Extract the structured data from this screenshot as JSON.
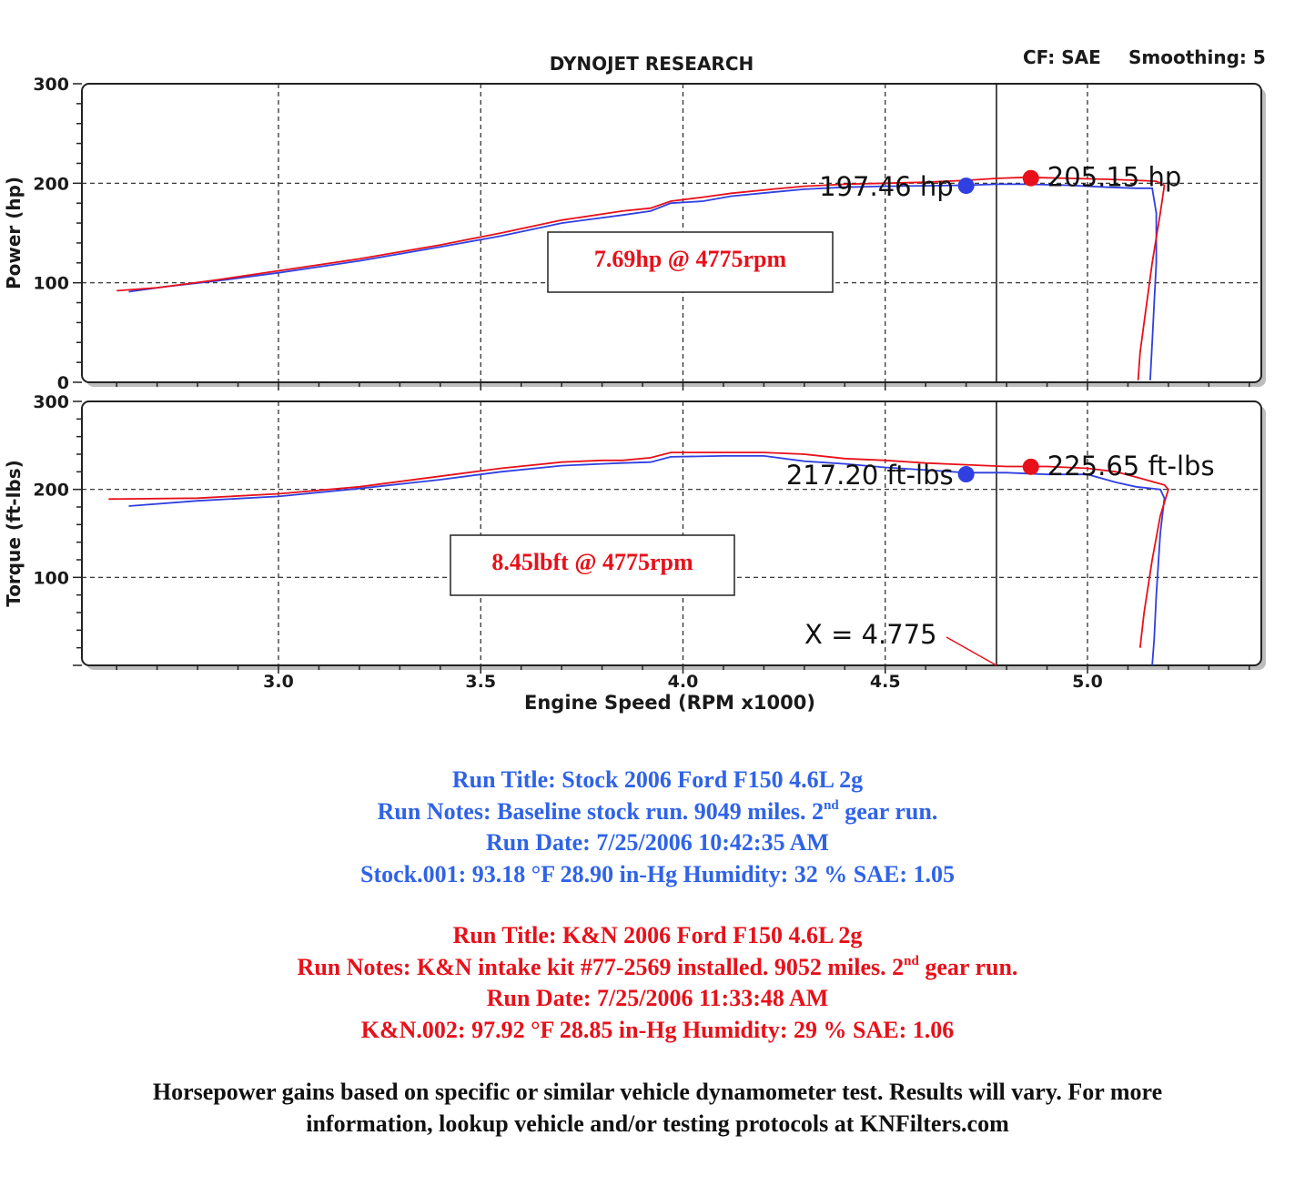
{
  "header": {
    "title": "DYNOJET RESEARCH",
    "cf_label": "CF: SAE",
    "smoothing_label": "Smoothing: 5"
  },
  "chart_data": [
    {
      "type": "line",
      "title": "DYNOJET RESEARCH",
      "ylabel": "Power (hp)",
      "xlabel": "",
      "ylim": [
        0,
        300
      ],
      "xlim": [
        2.55,
        5.45
      ],
      "y_ticks": [
        "0",
        "100",
        "200",
        "300"
      ],
      "grid": true,
      "series": [
        {
          "color": "#2f3fe0",
          "x": [
            2.63,
            2.72,
            2.85,
            3.0,
            3.2,
            3.4,
            3.55,
            3.7,
            3.85,
            3.92,
            3.97,
            4.05,
            4.12,
            4.22,
            4.3,
            4.4,
            4.5,
            4.6,
            4.7,
            4.78,
            4.85,
            4.95,
            5.05,
            5.12,
            5.16,
            5.17,
            5.17,
            5.165,
            5.16,
            5.155
          ],
          "y": [
            91,
            96,
            102,
            110,
            122,
            136,
            147,
            160,
            168,
            172,
            180,
            182,
            187,
            191,
            194,
            196,
            197,
            197.5,
            198,
            199,
            199,
            198,
            196,
            195,
            195,
            170,
            120,
            80,
            40,
            2
          ]
        },
        {
          "color": "#e8101a",
          "x": [
            2.6,
            2.7,
            2.85,
            3.0,
            3.2,
            3.4,
            3.55,
            3.7,
            3.85,
            3.92,
            3.97,
            4.05,
            4.12,
            4.22,
            4.3,
            4.4,
            4.5,
            4.6,
            4.7,
            4.78,
            4.85,
            4.95,
            5.05,
            5.12,
            5.17,
            5.19,
            5.18,
            5.16,
            5.14,
            5.13,
            5.125
          ],
          "y": [
            92,
            95,
            103,
            112,
            124,
            138,
            150,
            163,
            172,
            175,
            182,
            186,
            190,
            194,
            197,
            199,
            200,
            201,
            203,
            205,
            206,
            205,
            204,
            203,
            202,
            198,
            170,
            120,
            60,
            30,
            2
          ]
        }
      ],
      "points": [
        {
          "x": 4.7,
          "y": 197.46,
          "color": "#2f3fe0",
          "label": "197.46 hp"
        },
        {
          "x": 4.86,
          "y": 205.15,
          "color": "#e8101a",
          "label": "205.15 hp"
        }
      ],
      "annotation_box": "7.69hp @ 4775rpm",
      "cursor_x": 4.775
    },
    {
      "type": "line",
      "xlabel": "Engine Speed (RPM x1000)",
      "ylabel": "Torque (ft-lbs)",
      "ylim": [
        0,
        300
      ],
      "xlim": [
        2.55,
        5.45
      ],
      "x_ticks": [
        "3.0",
        "3.5",
        "4.0",
        "4.5",
        "5.0"
      ],
      "y_ticks": [
        "100",
        "200",
        "300"
      ],
      "grid": true,
      "series": [
        {
          "color": "#2f3fe0",
          "x": [
            2.63,
            2.8,
            3.0,
            3.2,
            3.4,
            3.55,
            3.7,
            3.8,
            3.85,
            3.92,
            3.97,
            4.1,
            4.2,
            4.3,
            4.4,
            4.5,
            4.6,
            4.7,
            4.8,
            4.9,
            5.0,
            5.07,
            5.12,
            5.18,
            5.19,
            5.18,
            5.17,
            5.165,
            5.16
          ],
          "y": [
            181,
            187,
            192,
            201,
            211,
            220,
            227,
            229,
            230,
            231,
            237,
            238,
            238,
            232,
            229,
            225,
            222,
            219,
            219,
            217,
            217,
            208,
            203,
            200,
            190,
            150,
            80,
            30,
            0
          ]
        },
        {
          "color": "#e8101a",
          "x": [
            2.58,
            2.8,
            3.0,
            3.2,
            3.4,
            3.55,
            3.7,
            3.8,
            3.85,
            3.92,
            3.97,
            4.1,
            4.2,
            4.3,
            4.4,
            4.5,
            4.6,
            4.7,
            4.8,
            4.9,
            5.0,
            5.07,
            5.12,
            5.19,
            5.2,
            5.18,
            5.16,
            5.14,
            5.13
          ],
          "y": [
            189,
            190,
            195,
            203,
            215,
            224,
            231,
            233,
            233,
            236,
            242,
            242,
            242,
            240,
            235,
            233,
            230,
            228,
            226,
            226,
            224,
            220,
            214,
            205,
            200,
            170,
            120,
            60,
            20
          ]
        }
      ],
      "points": [
        {
          "x": 4.7,
          "y": 217.2,
          "color": "#2f3fe0",
          "label": "217.20 ft-lbs"
        },
        {
          "x": 4.86,
          "y": 225.65,
          "color": "#e8101a",
          "label": "225.65 ft-lbs"
        }
      ],
      "annotation_box": "8.45lbft @ 4775rpm",
      "cursor_x": 4.775,
      "cursor_label": "X = 4.775"
    }
  ],
  "stock_notes": {
    "title": "Run Title: Stock 2006 Ford F150 4.6L 2g",
    "notes_prefix": "Run Notes: Baseline stock run. 9049 miles. 2",
    "notes_sup": "nd",
    "notes_suffix": " gear run.",
    "date": "Run Date: 7/25/2006 10:42:35 AM",
    "conditions": "Stock.001: 93.18 °F 28.90 in-Hg Humidity: 32 % SAE: 1.05"
  },
  "kn_notes": {
    "title": "Run Title: K&N 2006 Ford F150 4.6L 2g",
    "notes_prefix": "Run Notes: K&N intake kit #77-2569 installed. 9052 miles. 2",
    "notes_sup": "nd",
    "notes_suffix": " gear run.",
    "date": "Run Date: 7/25/2006 11:33:48 AM",
    "conditions": "K&N.002: 97.92 °F 28.85 in-Hg Humidity: 29 % SAE: 1.06"
  },
  "disclaimer": {
    "line1": "Horsepower gains based on specific or similar vehicle dynamometer test. Results will vary. For more",
    "line2": "information, lookup vehicle and/or testing protocols at KNFilters.com"
  },
  "colors": {
    "stock": "#2f3fe0",
    "kn": "#e8101a",
    "stock_text": "#2f63e8"
  }
}
